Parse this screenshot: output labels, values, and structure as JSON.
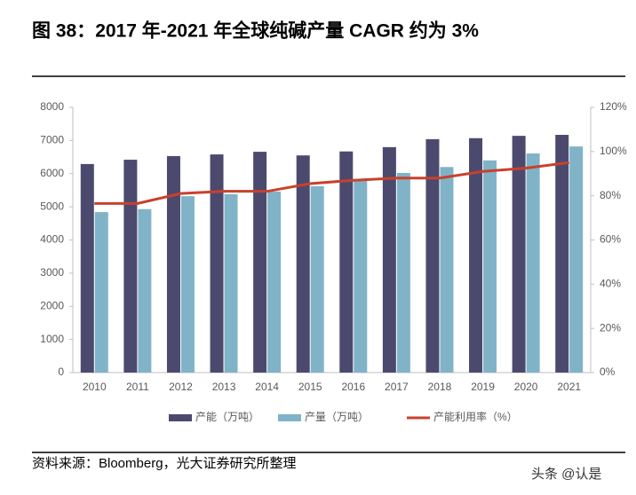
{
  "chart_data": {
    "type": "bar",
    "title": "图 38：2017 年-2021 年全球纯碱产量 CAGR 约为 3%",
    "categories": [
      "2010",
      "2011",
      "2012",
      "2013",
      "2014",
      "2015",
      "2016",
      "2017",
      "2018",
      "2019",
      "2020",
      "2021"
    ],
    "series": [
      {
        "name": "产能（万吨）",
        "type": "bar",
        "color": "#4b4a6e",
        "values": [
          6290,
          6420,
          6530,
          6580,
          6660,
          6550,
          6670,
          6800,
          7040,
          7070,
          7140,
          7170
        ]
      },
      {
        "name": "产量（万吨）",
        "type": "bar",
        "color": "#80b3c7",
        "values": [
          4840,
          4930,
          5320,
          5380,
          5460,
          5620,
          5780,
          6020,
          6200,
          6400,
          6610,
          6820
        ]
      },
      {
        "name": "产能利用率（%）",
        "type": "line",
        "axis": "y2",
        "color": "#c8412c",
        "values": [
          76.5,
          76.5,
          81,
          82,
          82,
          85.5,
          87,
          88,
          88,
          91,
          92.5,
          95
        ]
      }
    ],
    "ylim": [
      0,
      8000
    ],
    "yticks": [
      0,
      1000,
      2000,
      3000,
      4000,
      5000,
      6000,
      7000,
      8000
    ],
    "y2lim": [
      0,
      120
    ],
    "y2ticks": [
      {
        "value": 0,
        "label": "0%"
      },
      {
        "value": 20,
        "label": "20%"
      },
      {
        "value": 40,
        "label": "40%"
      },
      {
        "value": 60,
        "label": "60%"
      },
      {
        "value": 80,
        "label": "80%"
      },
      {
        "value": 100,
        "label": "100%"
      },
      {
        "value": 120,
        "label": "120%"
      }
    ],
    "grid": false,
    "legend": "bottom"
  },
  "source": "资料来源：Bloomberg，光大证券研究所整理",
  "watermark": "头条 @认是"
}
